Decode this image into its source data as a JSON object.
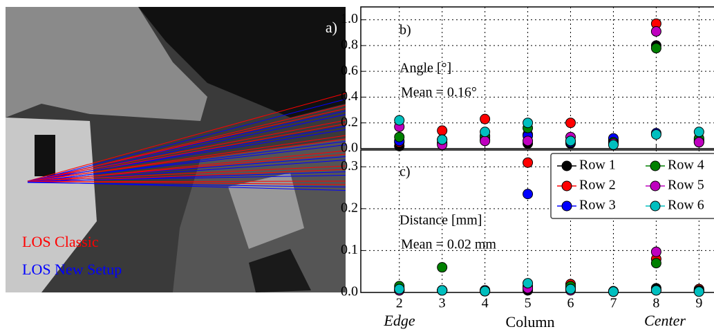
{
  "image_panel": {
    "label": "a)",
    "legend": [
      "LOS Classic",
      "LOS New Setup"
    ]
  },
  "chart_data": [
    {
      "type": "scatter",
      "panel_label": "b)",
      "annotations": [
        "Angle [°]",
        "Mean = 0.16°"
      ],
      "x": [
        2,
        3,
        4,
        5,
        6,
        7,
        8,
        9
      ],
      "xlim": [
        1.1,
        9.35
      ],
      "xticks": [
        2,
        3,
        4,
        5,
        6,
        7,
        8,
        9
      ],
      "ylim": [
        0,
        1.1
      ],
      "yticks": [
        {
          "value": 0,
          "label": "0.0"
        },
        {
          "value": 0.2,
          "label": "0.2"
        },
        {
          "value": 0.4,
          "label": "0.4"
        },
        {
          "value": 0.6,
          "label": "0.6"
        },
        {
          "value": 0.8,
          "label": "0.8"
        },
        {
          "value": 1.0,
          "label": "1.0"
        }
      ],
      "grid": true,
      "series": [
        {
          "name": "Row 1",
          "color": "#000000",
          "values": [
            0.02,
            0.04,
            0.07,
            0.04,
            0.04,
            0.06,
            0.8,
            0.05
          ]
        },
        {
          "name": "Row 2",
          "color": "#ff0000",
          "values": [
            0.05,
            0.14,
            0.23,
            0.11,
            0.2,
            0.06,
            0.97,
            0.06
          ]
        },
        {
          "name": "Row 3",
          "color": "#0000ff",
          "values": [
            0.06,
            0.05,
            0.09,
            0.1,
            0.05,
            0.08,
            0.12,
            0.07
          ]
        },
        {
          "name": "Row 4",
          "color": "#008000",
          "values": [
            0.09,
            0.07,
            0.1,
            0.16,
            0.06,
            0.05,
            0.78,
            0.08
          ]
        },
        {
          "name": "Row 5",
          "color": "#bf00bf",
          "values": [
            0.17,
            0.03,
            0.06,
            0.06,
            0.09,
            0.04,
            0.91,
            0.05
          ]
        },
        {
          "name": "Row 6",
          "color": "#00bfbf",
          "values": [
            0.22,
            0.07,
            0.13,
            0.2,
            0.06,
            0.03,
            0.11,
            0.13
          ]
        }
      ]
    },
    {
      "type": "scatter",
      "panel_label": "c)",
      "annotations": [
        "Distance [mm]",
        "Mean = 0.02 mm"
      ],
      "xlabel": "Column",
      "x_end_labels": [
        "Edge",
        "Center"
      ],
      "x": [
        2,
        3,
        4,
        5,
        6,
        7,
        8,
        9
      ],
      "xlim": [
        1.1,
        9.35
      ],
      "xticks": [
        2,
        3,
        4,
        5,
        6,
        7,
        8,
        9
      ],
      "ylim": [
        0,
        0.34
      ],
      "yticks": [
        {
          "value": 0,
          "label": "0.0"
        },
        {
          "value": 0.1,
          "label": "0.1"
        },
        {
          "value": 0.2,
          "label": "0.2"
        },
        {
          "value": 0.3,
          "label": "0.3"
        }
      ],
      "grid": true,
      "legend": "upper right",
      "series": [
        {
          "name": "Row 1",
          "color": "#000000",
          "values": [
            0.005,
            0.005,
            0.003,
            0.005,
            0.01,
            0.002,
            0.01,
            0.005
          ]
        },
        {
          "name": "Row 2",
          "color": "#ff0000",
          "values": [
            0.01,
            0.005,
            0.005,
            0.31,
            0.02,
            0.003,
            0.08,
            0.008
          ]
        },
        {
          "name": "Row 3",
          "color": "#0000ff",
          "values": [
            0.005,
            0.005,
            0.003,
            0.235,
            0.01,
            0.002,
            0.005,
            0.003
          ]
        },
        {
          "name": "Row 4",
          "color": "#008000",
          "values": [
            0.015,
            0.06,
            0.003,
            0.015,
            0.015,
            0.002,
            0.07,
            0.005
          ]
        },
        {
          "name": "Row 5",
          "color": "#bf00bf",
          "values": [
            0.005,
            0.005,
            0.005,
            0.01,
            0.005,
            0.002,
            0.097,
            0.003
          ]
        },
        {
          "name": "Row 6",
          "color": "#00bfbf",
          "values": [
            0.008,
            0.005,
            0.003,
            0.022,
            0.008,
            0.002,
            0.005,
            0.002
          ]
        }
      ]
    }
  ]
}
